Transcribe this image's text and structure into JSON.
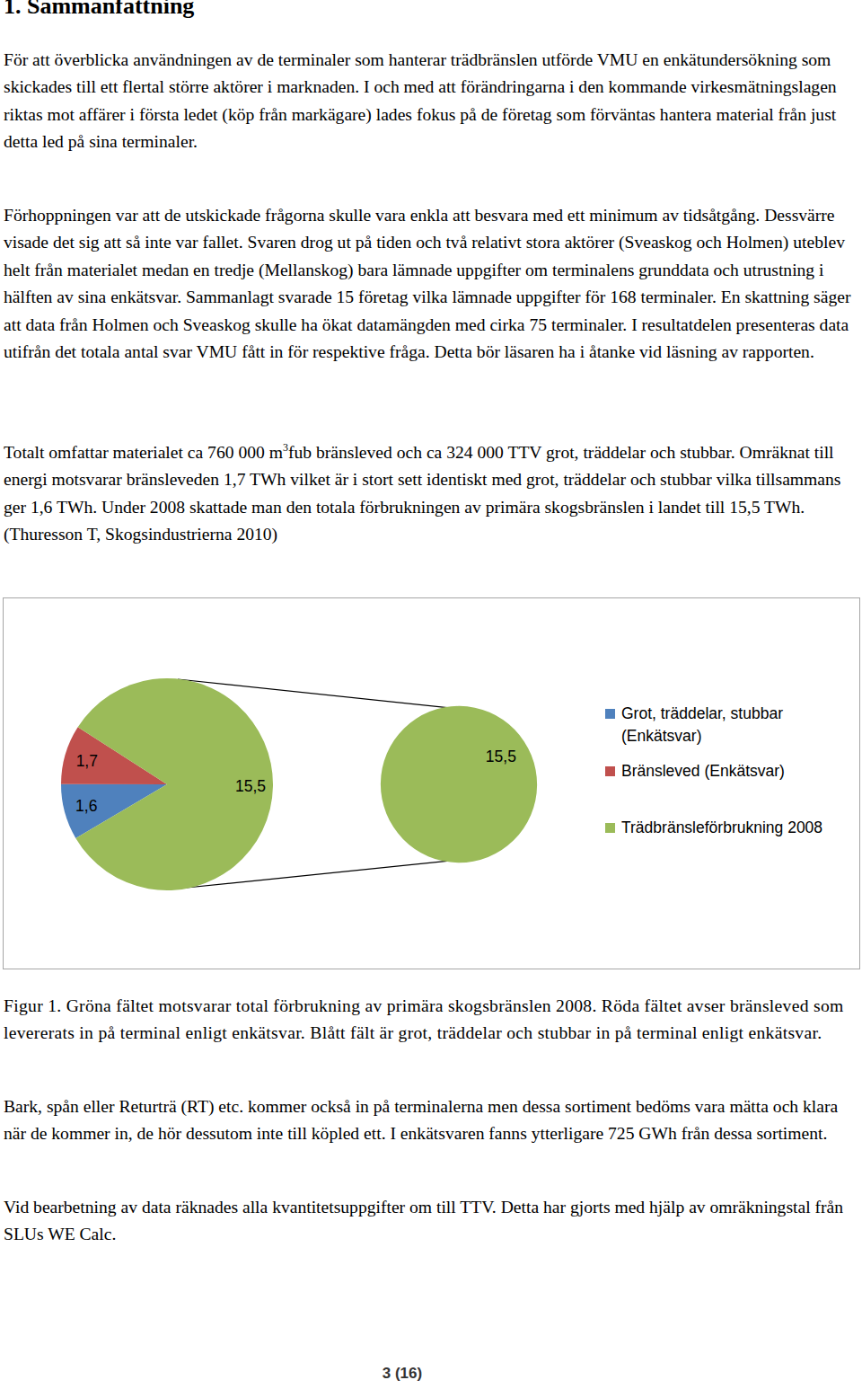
{
  "heading": "1. Sammanfattning",
  "paragraphs_before": [
    [
      "För att överblicka användningen av de terminaler som hanterar trädbränslen utförde VMU en enkätundersökning som skickades till ett flertal större aktörer i marknaden. I och med att förändringarna i den kommande virkesmätningslagen riktas mot affärer i första ledet (köp från markägare) lades fokus på de företag som förväntas hantera material från just detta led på sina terminaler."
    ],
    [
      "Förhoppningen var att de utskickade frågorna skulle vara enkla att besvara med ett minimum av tidsåtgång. Dessvärre visade det sig att så inte var fallet.  Svaren drog ut på tiden och två relativt stora aktörer (Sveaskog och Holmen) uteblev helt från materialet medan en tredje (Mellanskog) bara lämnade uppgifter om terminalens grunddata och utrustning i hälften av sina enkätsvar. Sammanlagt svarade 15 företag vilka lämnade uppgifter för 168 terminaler.  En skattning säger att data från Holmen och Sveaskog skulle ha ökat datamängden med cirka 75 terminaler. I resultatdelen presenteras data utifrån det totala antal svar VMU fått in för respektive fråga. Detta bör läsaren ha i åtanke vid läsning av rapporten."
    ],
    [
      "Totalt omfattar materialet ca 760 000 m",
      {
        "sup": "3"
      },
      "fub bränsleved och ca 324 000 TTV grot, träddelar och stubbar. Omräknat till energi motsvarar bränsleveden 1,7 TWh vilket är i stort sett identiskt med grot, träddelar och stubbar vilka tillsammans ger 1,6 TWh. Under 2008 skattade man den totala förbrukningen av primära skogsbränslen i landet till 15,5 TWh. (Thuresson T, Skogsindustrierna 2010)"
    ]
  ],
  "chart_data": {
    "type": "pie",
    "categories": [
      "Grot, träddelar, stubbar (Enkätsvar)",
      "Bränsleved (Enkätsvar)",
      "Trädbränsleförbrukning 2008"
    ],
    "values": [
      1.6,
      1.7,
      15.5
    ],
    "value_labels": [
      "1,6",
      "1,7",
      "15,5"
    ],
    "colors": [
      "#4f81bd",
      "#c0504d",
      "#9bbb59"
    ],
    "data_labels": true,
    "legend": "right",
    "secondary": {
      "values": [
        15.5
      ],
      "value_labels": [
        "15,5"
      ],
      "colors": [
        "#9bbb59"
      ]
    }
  },
  "caption": "Figur 1. Gröna fältet motsvarar total förbrukning av primära skogsbränslen 2008. Röda fältet avser bränsleved som levererats in på terminal enligt enkätsvar. Blått fält är grot, träddelar och stubbar in på terminal enligt enkätsvar.",
  "paragraphs_after": [
    [
      "Bark, spån eller Returträ (RT) etc. kommer också in på terminalerna men dessa sortiment bedöms vara mätta och klara när de kommer in, de hör dessutom inte till köpled ett. I enkätsvaren fanns ytterligare 725 GWh från dessa sortiment."
    ],
    [
      "Vid bearbetning av data räknades alla kvantitetsuppgifter om till TTV. Detta har gjorts med hjälp av omräkningstal från SLUs WE Calc."
    ]
  ],
  "page_number": "3 (16)"
}
